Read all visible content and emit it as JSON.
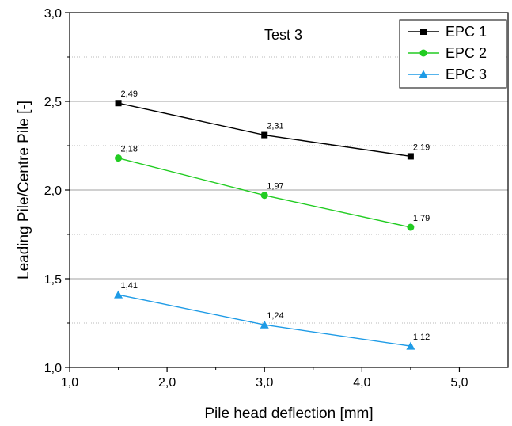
{
  "chart_data": {
    "type": "line",
    "title": "",
    "annotation": "Test 3",
    "xlabel": "Pile head deflection [mm]",
    "ylabel": "Leading Pile/Centre Pile [-]",
    "xlim": [
      1.0,
      5.5
    ],
    "ylim": [
      1.0,
      3.0
    ],
    "xticks": [
      "1,0",
      "2,0",
      "3,0",
      "4,0",
      "5,0"
    ],
    "xtick_values": [
      1,
      2,
      3,
      4,
      5
    ],
    "yticks": [
      "1,0",
      "1,5",
      "2,0",
      "2,5",
      "3,0"
    ],
    "ytick_values": [
      1.0,
      1.5,
      2.0,
      2.5,
      3.0
    ],
    "grid": "horizontal",
    "legend_position": "top-right",
    "x": [
      1.5,
      3.0,
      4.5
    ],
    "series": [
      {
        "name": "EPC 1",
        "values": [
          2.49,
          2.31,
          2.19
        ],
        "labels": [
          "2,49",
          "2,31",
          "2,19"
        ],
        "color": "#000000",
        "marker": "square"
      },
      {
        "name": "EPC 2",
        "values": [
          2.18,
          1.97,
          1.79
        ],
        "labels": [
          "2,18",
          "1,97",
          "1,79"
        ],
        "color": "#22cc22",
        "marker": "circle"
      },
      {
        "name": "EPC 3",
        "values": [
          1.41,
          1.24,
          1.12
        ],
        "labels": [
          "1,41",
          "1,24",
          "1,12"
        ],
        "color": "#1e9be6",
        "marker": "triangle"
      }
    ]
  }
}
